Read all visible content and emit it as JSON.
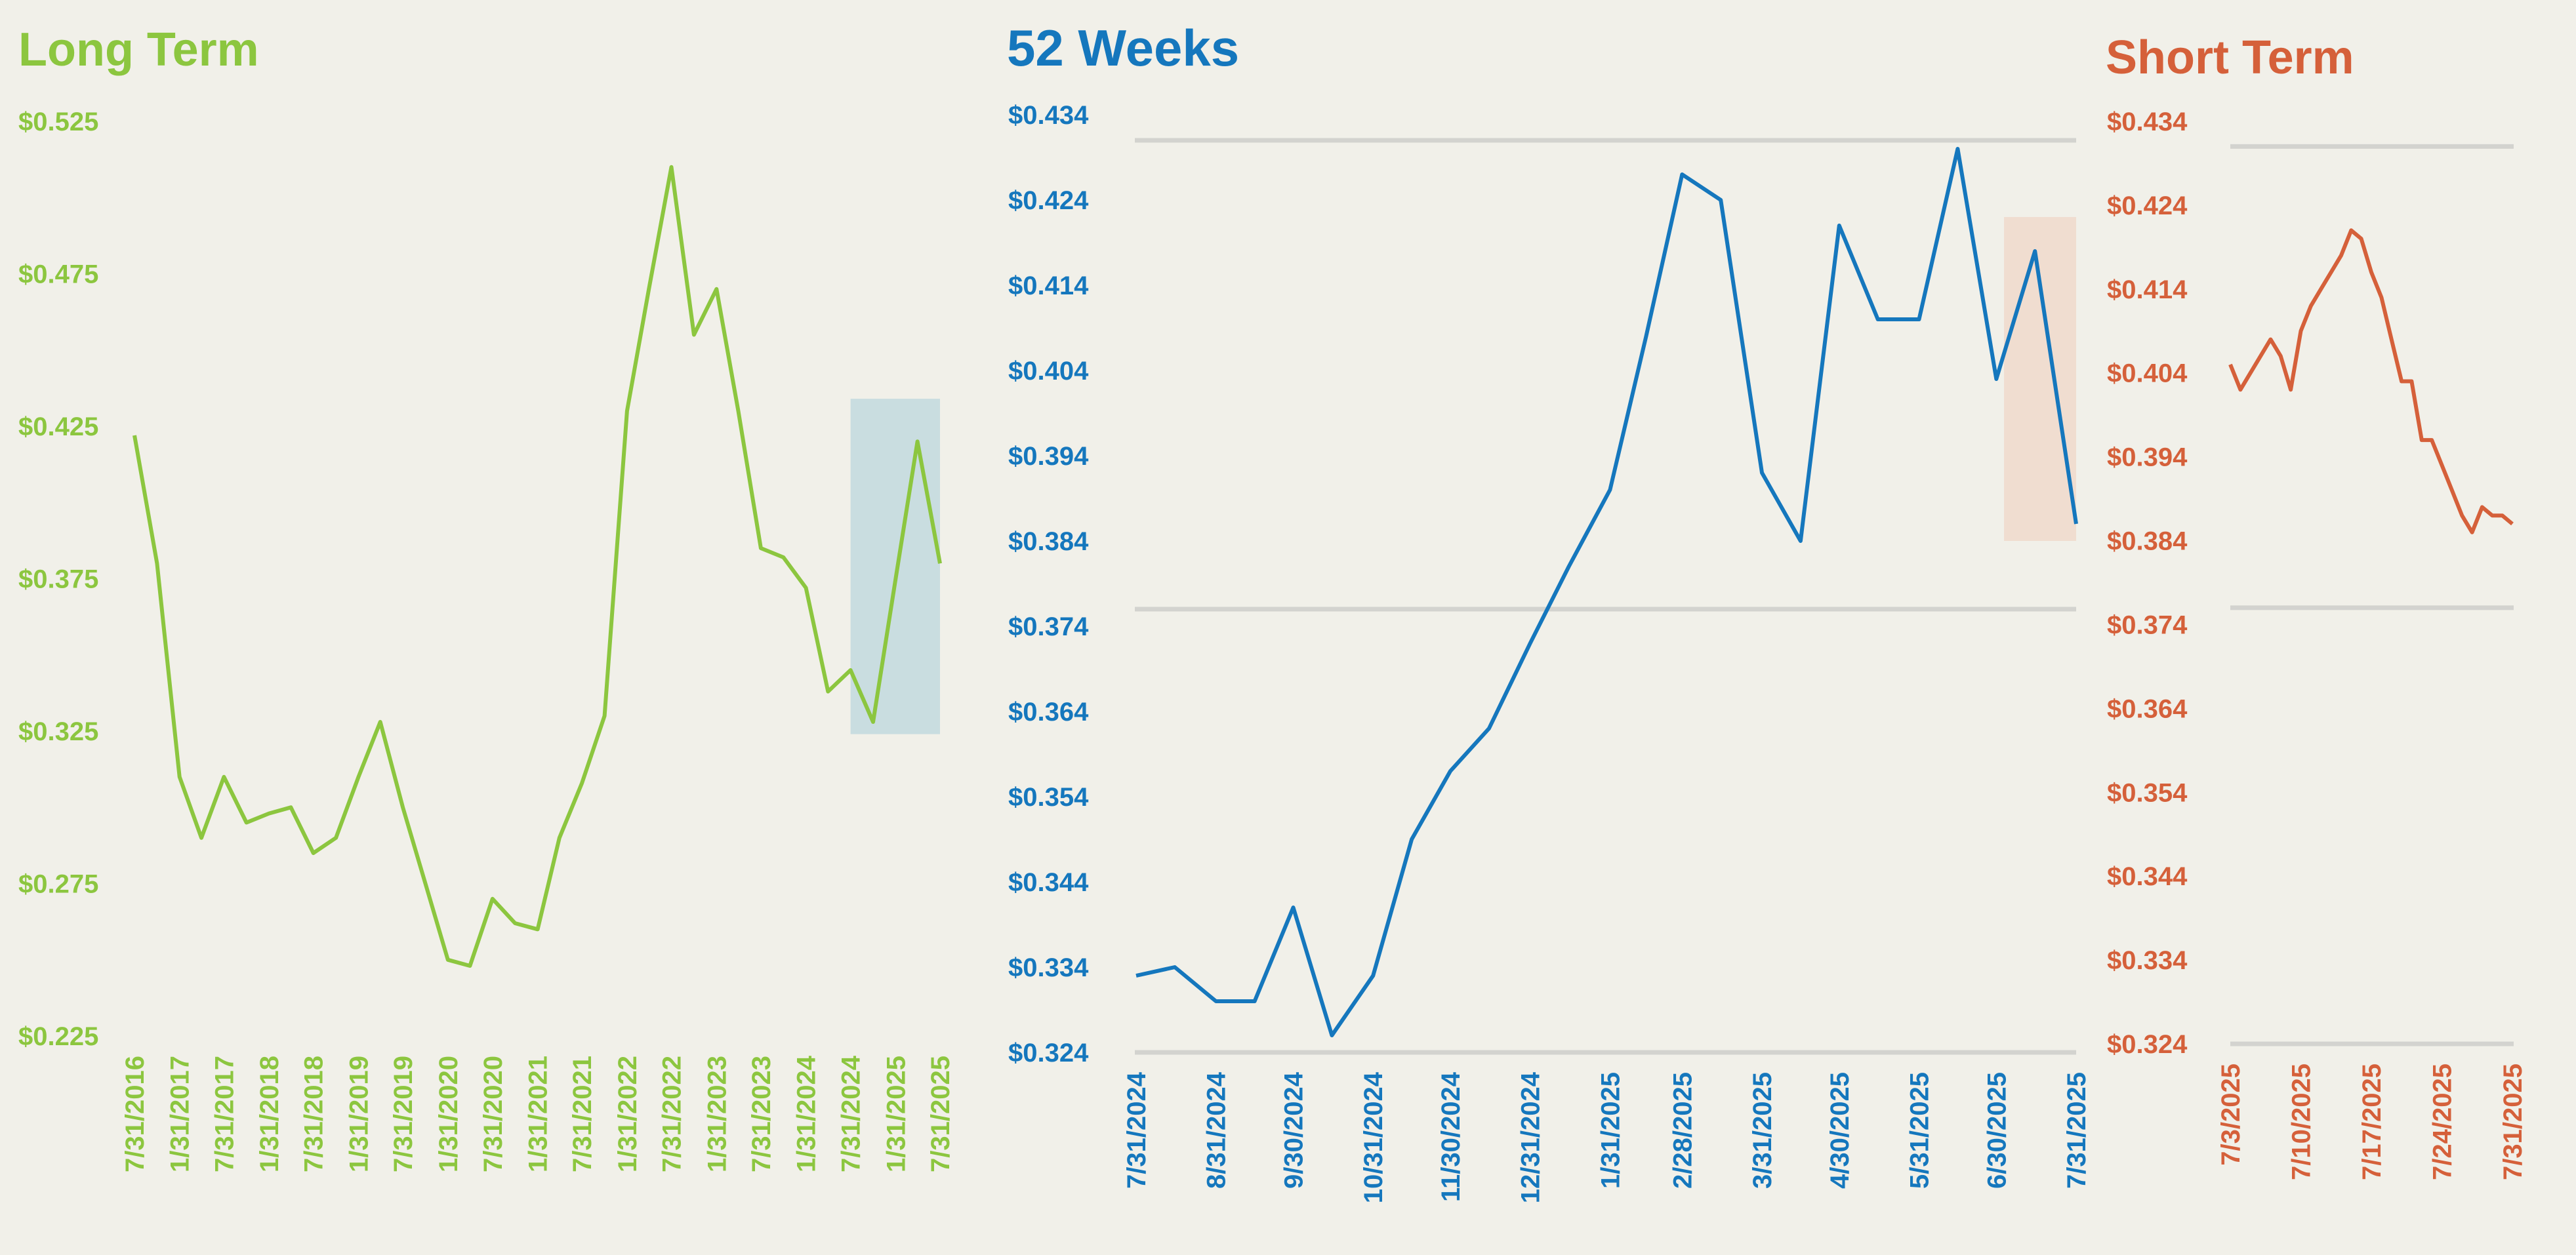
{
  "chart_data": [
    {
      "type": "line",
      "title": "Long Term",
      "color": "#8cc63f",
      "y_ticks": [
        "$0.525",
        "$0.475",
        "$0.425",
        "$0.375",
        "$0.325",
        "$0.275",
        "$0.225"
      ],
      "ylim": [
        0.225,
        0.525
      ],
      "x_ticks": [
        "7/31/2016",
        "1/31/2017",
        "7/31/2017",
        "1/31/2018",
        "7/31/2018",
        "1/31/2019",
        "7/31/2019",
        "1/31/2020",
        "7/31/2020",
        "1/31/2021",
        "7/31/2021",
        "1/31/2022",
        "7/31/2022",
        "1/31/2023",
        "7/31/2023",
        "1/31/2024",
        "7/31/2024",
        "1/31/2025",
        "7/31/2025"
      ],
      "highlight": {
        "from": "7/31/2024",
        "to": "7/31/2025",
        "y_range": [
          0.324,
          0.434
        ],
        "color": "#c9dde0"
      },
      "x": [
        "7/31/2016",
        "10/31/2016",
        "1/31/2017",
        "4/30/2017",
        "7/31/2017",
        "10/31/2017",
        "1/31/2018",
        "4/30/2018",
        "7/31/2018",
        "10/31/2018",
        "1/31/2019",
        "4/30/2019",
        "7/31/2019",
        "10/31/2019",
        "1/31/2020",
        "4/30/2020",
        "7/31/2020",
        "10/31/2020",
        "1/31/2021",
        "4/30/2021",
        "7/31/2021",
        "10/31/2021",
        "1/31/2022",
        "4/30/2022",
        "7/31/2022",
        "10/31/2022",
        "1/31/2023",
        "4/30/2023",
        "7/31/2023",
        "10/31/2023",
        "1/31/2024",
        "4/30/2024",
        "7/31/2024",
        "10/31/2024",
        "1/31/2025",
        "4/30/2025",
        "7/31/2025"
      ],
      "values": [
        0.422,
        0.38,
        0.31,
        0.29,
        0.31,
        0.295,
        0.298,
        0.3,
        0.285,
        0.29,
        0.31,
        0.328,
        0.3,
        0.275,
        0.25,
        0.248,
        0.27,
        0.262,
        0.26,
        0.29,
        0.308,
        0.33,
        0.43,
        0.47,
        0.51,
        0.455,
        0.47,
        0.43,
        0.385,
        0.382,
        0.372,
        0.338,
        0.345,
        0.328,
        0.375,
        0.42,
        0.38
      ]
    },
    {
      "type": "line",
      "title": "52 Weeks",
      "color": "#1577bd",
      "y_ticks": [
        "$0.434",
        "$0.424",
        "$0.414",
        "$0.404",
        "$0.394",
        "$0.384",
        "$0.374",
        "$0.364",
        "$0.354",
        "$0.344",
        "$0.334",
        "$0.324"
      ],
      "ylim": [
        0.324,
        0.434
      ],
      "ref_lines": [
        0.431,
        0.376,
        0.324
      ],
      "x_ticks": [
        "7/31/2024",
        "8/31/2024",
        "9/30/2024",
        "10/31/2024",
        "11/30/2024",
        "12/31/2024",
        "1/31/2025",
        "2/28/2025",
        "3/31/2025",
        "4/30/2025",
        "5/31/2025",
        "6/30/2025",
        "7/31/2025"
      ],
      "highlight": {
        "from": "7/3/2025",
        "to": "7/31/2025",
        "y_range": [
          0.384,
          0.422
        ],
        "color": "#f0ddd0"
      },
      "x": [
        "7/31/2024",
        "8/15/2024",
        "8/31/2024",
        "9/15/2024",
        "9/30/2024",
        "10/15/2024",
        "10/31/2024",
        "11/15/2024",
        "11/30/2024",
        "12/15/2024",
        "12/31/2024",
        "1/15/2025",
        "1/31/2025",
        "2/14/2025",
        "2/28/2025",
        "3/15/2025",
        "3/31/2025",
        "4/15/2025",
        "4/30/2025",
        "5/15/2025",
        "5/31/2025",
        "6/15/2025",
        "6/30/2025",
        "7/15/2025",
        "7/31/2025"
      ],
      "values": [
        0.333,
        0.334,
        0.33,
        0.33,
        0.341,
        0.326,
        0.333,
        0.349,
        0.357,
        0.362,
        0.372,
        0.381,
        0.39,
        0.408,
        0.427,
        0.424,
        0.392,
        0.384,
        0.421,
        0.41,
        0.41,
        0.43,
        0.403,
        0.418,
        0.386
      ]
    },
    {
      "type": "line",
      "title": "Short Term",
      "color": "#d5603a",
      "y_ticks": [
        "$0.434",
        "$0.424",
        "$0.414",
        "$0.404",
        "$0.394",
        "$0.384",
        "$0.374",
        "$0.364",
        "$0.354",
        "$0.344",
        "$0.334",
        "$0.324"
      ],
      "ylim": [
        0.324,
        0.434
      ],
      "ref_lines": [
        0.431,
        0.376,
        0.324
      ],
      "x_ticks": [
        "7/3/2025",
        "7/10/2025",
        "7/17/2025",
        "7/24/2025",
        "7/31/2025"
      ],
      "x": [
        "7/3/2025",
        "7/4/2025",
        "7/5/2025",
        "7/6/2025",
        "7/7/2025",
        "7/8/2025",
        "7/9/2025",
        "7/10/2025",
        "7/11/2025",
        "7/12/2025",
        "7/13/2025",
        "7/14/2025",
        "7/15/2025",
        "7/16/2025",
        "7/17/2025",
        "7/18/2025",
        "7/19/2025",
        "7/20/2025",
        "7/21/2025",
        "7/22/2025",
        "7/23/2025",
        "7/24/2025",
        "7/25/2025",
        "7/26/2025",
        "7/27/2025",
        "7/28/2025",
        "7/29/2025",
        "7/30/2025",
        "7/31/2025"
      ],
      "values": [
        0.405,
        0.402,
        0.404,
        0.406,
        0.408,
        0.406,
        0.402,
        0.409,
        0.412,
        0.414,
        0.416,
        0.418,
        0.421,
        0.42,
        0.416,
        0.413,
        0.408,
        0.403,
        0.403,
        0.396,
        0.396,
        0.393,
        0.39,
        0.387,
        0.385,
        0.388,
        0.387,
        0.387,
        0.386
      ]
    }
  ]
}
